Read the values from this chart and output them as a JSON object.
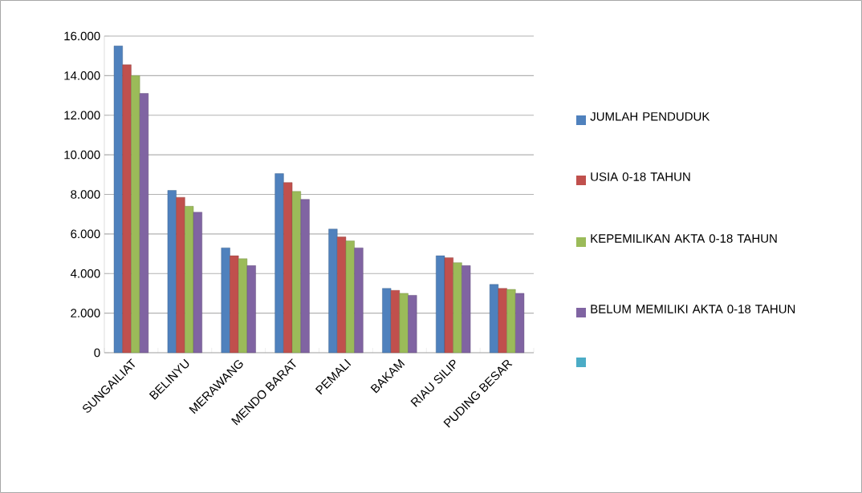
{
  "chart_data": {
    "type": "bar",
    "categories": [
      "SUNGAILIAT",
      "BELINYU",
      "MERAWANG",
      "MENDO BARAT",
      "PEMALI",
      "BAKAM",
      "RIAU SILIP",
      "PUDING BESAR"
    ],
    "series": [
      {
        "name": "JUMLAH PENDUDUK",
        "color": "#4f81bd",
        "values": [
          15500,
          8200,
          5300,
          9050,
          6250,
          3250,
          4900,
          3450
        ]
      },
      {
        "name": "USIA 0-18 TAHUN",
        "color": "#c0504d",
        "values": [
          14550,
          7850,
          4900,
          8600,
          5850,
          3150,
          4800,
          3250
        ]
      },
      {
        "name": "KEPEMILIKAN AKTA 0-18 TAHUN",
        "color": "#9bbb59",
        "values": [
          14000,
          7400,
          4750,
          8150,
          5650,
          3000,
          4550,
          3200
        ]
      },
      {
        "name": "BELUM MEMILIKI AKTA 0-18 TAHUN",
        "color": "#8064a2",
        "values": [
          13100,
          7100,
          4400,
          7750,
          5300,
          2900,
          4400,
          3000
        ]
      },
      {
        "color": "#4bacc6",
        "values": [
          null,
          null,
          null,
          null,
          null,
          null,
          null,
          null
        ]
      }
    ],
    "ylim": [
      0,
      16000
    ],
    "yticks": [
      {
        "value": 0,
        "label": "0"
      },
      {
        "value": 2000,
        "label": "2.000"
      },
      {
        "value": 4000,
        "label": "4.000"
      },
      {
        "value": 6000,
        "label": "6.000"
      },
      {
        "value": 8000,
        "label": "8.000"
      },
      {
        "value": 10000,
        "label": "10.000"
      },
      {
        "value": 12000,
        "label": "12.000"
      },
      {
        "value": 14000,
        "label": "14.000"
      },
      {
        "value": 16000,
        "label": "16.000"
      }
    ],
    "grid": "y",
    "legend": "right"
  }
}
